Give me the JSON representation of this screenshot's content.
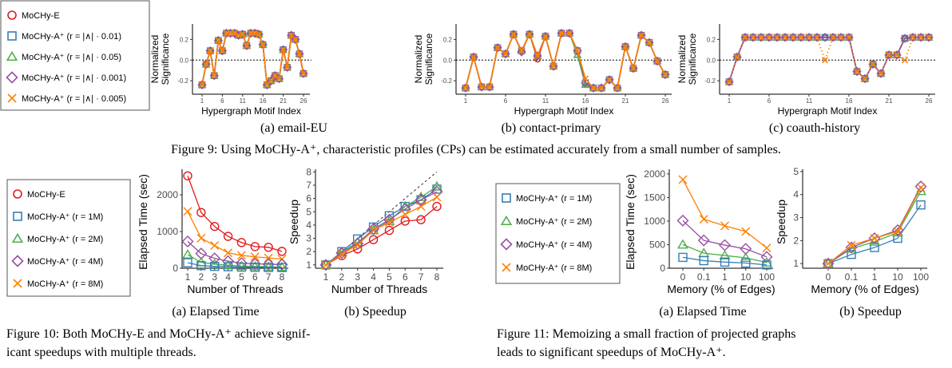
{
  "colors": {
    "E": "#e41a1c",
    "A1": "#377eb8",
    "A2": "#4daf4a",
    "A3": "#984ea3",
    "A4": "#ff7f00"
  },
  "fig9": {
    "legend": [
      "MoCHy-E",
      "MoCHy-A⁺ (r = |∧| · 0.01)",
      "MoCHy-A⁺ (r = |∧| · 0.05)",
      "MoCHy-A⁺ (r = |∧| · 0.001)",
      "MoCHy-A⁺ (r = |∧| · 0.005)"
    ],
    "panel_captions": [
      "(a) email-EU",
      "(b) contact-primary",
      "(c) coauth-history"
    ],
    "caption": "Figure 9: Using MoCHy-A⁺, characteristic profiles (CPs) can be estimated accurately from a small number of samples."
  },
  "fig10": {
    "legend": [
      "MoCHy-E",
      "MoCHy-A⁺ (r = 1M)",
      "MoCHy-A⁺ (r = 2M)",
      "MoCHy-A⁺ (r = 4M)",
      "MoCHy-A⁺ (r = 8M)"
    ],
    "panel_captions": [
      "(a) Elapsed Time",
      "(b) Speedup"
    ],
    "caption_line1": "Figure 10:  Both MoCHy-E and MoCHy-A⁺ achieve signif-",
    "caption_line2": "icant speedups with multiple threads."
  },
  "fig11": {
    "legend": [
      "MoCHy-A⁺ (r = 1M)",
      "MoCHy-A⁺ (r = 2M)",
      "MoCHy-A⁺ (r = 4M)",
      "MoCHy-A⁺ (r = 8M)"
    ],
    "panel_captions": [
      "(a) Elapsed Time",
      "(b) Speedup"
    ],
    "caption_line1": "Figure 11:  Memoizing a small fraction of projected graphs",
    "caption_line2": "leads to significant speedups of MoCHy-A⁺."
  },
  "chart_data": [
    {
      "id": "email-EU",
      "type": "line",
      "xlabel": "Hypergraph Motif Index",
      "ylabel": "Normalized Significance",
      "xticks": [
        1,
        6,
        11,
        16,
        21,
        26
      ],
      "yticks": [
        "-0.2",
        "0.0",
        "0.2"
      ],
      "ylim": [
        -0.33,
        0.35
      ],
      "reference_line": 0,
      "x": [
        1,
        2,
        3,
        4,
        5,
        6,
        7,
        8,
        9,
        10,
        11,
        12,
        13,
        14,
        15,
        16,
        17,
        18,
        19,
        20,
        21,
        22,
        23,
        24,
        25,
        26
      ],
      "series": [
        {
          "key": "E",
          "marker": "circle",
          "values": [
            -0.24,
            -0.04,
            0.09,
            -0.15,
            0.19,
            0.09,
            0.26,
            0.26,
            0.26,
            0.24,
            0.25,
            0.14,
            0.26,
            0.26,
            0.25,
            0.15,
            -0.24,
            -0.2,
            -0.15,
            -0.18,
            0.1,
            -0.07,
            0.24,
            0.2,
            0.06,
            -0.13
          ]
        },
        {
          "key": "A1",
          "marker": "square",
          "values": [
            -0.24,
            -0.04,
            0.09,
            -0.15,
            0.19,
            0.09,
            0.26,
            0.26,
            0.26,
            0.24,
            0.25,
            0.14,
            0.26,
            0.26,
            0.25,
            0.15,
            -0.24,
            -0.2,
            -0.15,
            -0.18,
            0.1,
            -0.07,
            0.24,
            0.2,
            0.06,
            -0.13
          ]
        },
        {
          "key": "A2",
          "marker": "triangle",
          "values": [
            -0.24,
            -0.04,
            0.09,
            -0.15,
            0.19,
            0.09,
            0.26,
            0.26,
            0.26,
            0.24,
            0.25,
            0.14,
            0.26,
            0.26,
            0.25,
            0.15,
            -0.24,
            -0.2,
            -0.15,
            -0.18,
            0.1,
            -0.07,
            0.24,
            0.2,
            0.06,
            -0.13
          ]
        },
        {
          "key": "A3",
          "marker": "diamond",
          "values": [
            -0.24,
            -0.04,
            0.09,
            -0.15,
            0.19,
            0.09,
            0.26,
            0.26,
            0.26,
            0.24,
            0.25,
            0.14,
            0.26,
            0.26,
            0.25,
            0.15,
            -0.24,
            -0.2,
            -0.15,
            -0.18,
            0.1,
            -0.07,
            0.24,
            0.2,
            0.06,
            -0.13
          ]
        },
        {
          "key": "A4",
          "marker": "x",
          "values": [
            -0.24,
            -0.04,
            0.09,
            -0.15,
            0.19,
            0.09,
            0.26,
            0.26,
            0.26,
            0.24,
            0.25,
            0.14,
            0.26,
            0.26,
            0.25,
            0.15,
            -0.24,
            -0.2,
            -0.15,
            -0.18,
            0.1,
            -0.07,
            0.24,
            0.2,
            0.06,
            -0.13
          ]
        }
      ]
    },
    {
      "id": "contact-primary",
      "type": "line",
      "xlabel": "Hypergraph Motif Index",
      "ylabel": "Normalized Significance",
      "xticks": [
        1,
        6,
        11,
        16,
        21,
        26
      ],
      "yticks": [
        "-0.2",
        "0.0",
        "0.2"
      ],
      "ylim": [
        -0.33,
        0.35
      ],
      "reference_line": 0,
      "x": [
        1,
        2,
        3,
        4,
        5,
        6,
        7,
        8,
        9,
        10,
        11,
        12,
        13,
        14,
        15,
        16,
        17,
        18,
        19,
        20,
        21,
        22,
        23,
        24,
        25,
        26
      ],
      "series": [
        {
          "key": "E",
          "marker": "circle",
          "values": [
            -0.27,
            0.03,
            -0.26,
            -0.26,
            0.12,
            0.06,
            0.25,
            0.09,
            0.25,
            0.01,
            0.23,
            -0.06,
            0.26,
            0.26,
            0.09,
            -0.22,
            -0.27,
            -0.27,
            -0.19,
            -0.27,
            0.13,
            -0.08,
            0.24,
            0.17,
            -0.01,
            -0.14
          ]
        },
        {
          "key": "A1",
          "marker": "square",
          "values": [
            -0.27,
            0.03,
            -0.26,
            -0.26,
            0.12,
            0.06,
            0.25,
            0.09,
            0.25,
            0.04,
            0.23,
            -0.06,
            0.26,
            0.26,
            0.09,
            -0.22,
            -0.27,
            -0.27,
            -0.19,
            -0.27,
            0.13,
            -0.08,
            0.24,
            0.17,
            -0.01,
            -0.14
          ]
        },
        {
          "key": "A2",
          "marker": "triangle",
          "values": [
            -0.27,
            0.03,
            -0.26,
            -0.26,
            0.12,
            0.06,
            0.25,
            0.09,
            0.25,
            0.04,
            0.23,
            -0.06,
            0.26,
            0.26,
            0.05,
            -0.24,
            -0.27,
            -0.27,
            -0.19,
            -0.27,
            0.13,
            -0.08,
            0.24,
            0.17,
            -0.01,
            -0.14
          ]
        },
        {
          "key": "A3",
          "marker": "diamond",
          "values": [
            -0.27,
            0.03,
            -0.26,
            -0.26,
            0.12,
            0.06,
            0.25,
            0.08,
            0.25,
            0.04,
            0.23,
            -0.06,
            0.26,
            0.26,
            0.09,
            -0.22,
            -0.27,
            -0.27,
            -0.19,
            -0.27,
            0.13,
            -0.08,
            0.24,
            0.17,
            -0.01,
            -0.14
          ]
        },
        {
          "key": "A4",
          "marker": "x",
          "values": [
            -0.27,
            0.03,
            -0.26,
            -0.26,
            0.12,
            0.06,
            0.25,
            0.09,
            0.25,
            0.04,
            0.23,
            -0.06,
            0.26,
            0.26,
            0.09,
            -0.18,
            -0.27,
            -0.27,
            -0.19,
            -0.27,
            0.13,
            -0.08,
            0.24,
            0.17,
            -0.01,
            -0.14
          ]
        }
      ]
    },
    {
      "id": "coauth-history",
      "type": "line",
      "xlabel": "Hypergraph Motif Index",
      "ylabel": "Normalized Significance",
      "xticks": [
        1,
        6,
        11,
        16,
        21,
        26
      ],
      "yticks": [
        "-0.2",
        "0.0",
        "0.2"
      ],
      "ylim": [
        -0.33,
        0.35
      ],
      "reference_line": 0,
      "x": [
        1,
        2,
        3,
        4,
        5,
        6,
        7,
        8,
        9,
        10,
        11,
        12,
        13,
        14,
        15,
        16,
        17,
        18,
        19,
        20,
        21,
        22,
        23,
        24,
        25,
        26
      ],
      "series": [
        {
          "key": "E",
          "marker": "circle",
          "values": [
            -0.21,
            0.03,
            0.22,
            0.22,
            0.22,
            0.22,
            0.22,
            0.22,
            0.22,
            0.22,
            0.22,
            0.22,
            0.22,
            0.22,
            0.22,
            0.22,
            -0.11,
            -0.18,
            -0.04,
            -0.13,
            0.05,
            0.05,
            0.21,
            0.22,
            0.22,
            0.22
          ]
        },
        {
          "key": "A1",
          "marker": "square",
          "values": [
            -0.21,
            0.03,
            0.22,
            0.22,
            0.22,
            0.22,
            0.22,
            0.22,
            0.22,
            0.22,
            0.22,
            0.22,
            0.22,
            0.22,
            0.22,
            0.22,
            -0.11,
            -0.18,
            -0.04,
            -0.13,
            0.05,
            0.05,
            0.21,
            0.22,
            0.22,
            0.22
          ]
        },
        {
          "key": "A2",
          "marker": "triangle",
          "values": [
            -0.21,
            0.03,
            0.22,
            0.22,
            0.22,
            0.22,
            0.22,
            0.22,
            0.22,
            0.22,
            0.22,
            0.22,
            0.22,
            0.22,
            0.22,
            0.22,
            -0.11,
            -0.18,
            -0.04,
            -0.13,
            0.05,
            0.05,
            0.21,
            0.22,
            0.22,
            0.22
          ]
        },
        {
          "key": "A3",
          "marker": "diamond",
          "values": [
            -0.21,
            0.03,
            0.22,
            0.22,
            0.22,
            0.22,
            0.22,
            0.22,
            0.22,
            0.22,
            0.22,
            0.22,
            0.22,
            0.22,
            0.22,
            0.22,
            -0.11,
            -0.18,
            -0.04,
            -0.13,
            0.05,
            0.05,
            0.21,
            0.22,
            0.22,
            0.22
          ]
        },
        {
          "key": "A4",
          "marker": "x",
          "dotted": true,
          "values": [
            -0.21,
            0.03,
            0.22,
            0.22,
            0.22,
            0.22,
            0.22,
            0.22,
            0.22,
            0.22,
            0.22,
            0.22,
            0.0,
            0.22,
            0.22,
            0.22,
            -0.11,
            -0.18,
            -0.04,
            -0.13,
            0.05,
            0.05,
            0.0,
            0.22,
            0.22,
            0.22
          ]
        }
      ]
    },
    {
      "id": "fig10a",
      "type": "line",
      "xlabel": "Number of Threads",
      "ylabel": "Elapsed Time (sec)",
      "x": [
        1,
        2,
        3,
        4,
        5,
        6,
        7,
        8
      ],
      "xticks": [
        "1",
        "2",
        "3",
        "4",
        "5",
        "6",
        "7",
        "8"
      ],
      "yticks": [
        "0",
        "1000",
        "2000"
      ],
      "ylim": [
        0,
        2700
      ],
      "series": [
        {
          "key": "E",
          "marker": "circle",
          "values": [
            2520,
            1520,
            1140,
            870,
            700,
            590,
            570,
            460
          ]
        },
        {
          "key": "A4",
          "marker": "x",
          "values": [
            1550,
            820,
            620,
            420,
            350,
            310,
            280,
            250
          ]
        },
        {
          "key": "A3",
          "marker": "diamond",
          "values": [
            730,
            400,
            270,
            190,
            140,
            120,
            110,
            100
          ]
        },
        {
          "key": "A2",
          "marker": "triangle",
          "values": [
            370,
            160,
            110,
            80,
            60,
            50,
            40,
            30
          ]
        },
        {
          "key": "A1",
          "marker": "square",
          "values": [
            150,
            70,
            50,
            40,
            30,
            25,
            20,
            18
          ]
        }
      ]
    },
    {
      "id": "fig10b",
      "type": "line",
      "xlabel": "Number of Threads",
      "ylabel": "Speedup",
      "x": [
        1,
        2,
        3,
        4,
        5,
        6,
        7,
        8
      ],
      "xticks": [
        "1",
        "2",
        "3",
        "4",
        "5",
        "6",
        "7",
        "8"
      ],
      "yticks": [
        "1",
        "2",
        "3",
        "4",
        "5",
        "6",
        "7",
        "8"
      ],
      "ylim": [
        0.75,
        8.2
      ],
      "ideal_line": true,
      "series": [
        {
          "key": "E",
          "marker": "circle",
          "values": [
            1,
            1.7,
            2.2,
            2.9,
            3.6,
            4.3,
            4.4,
            5.4
          ]
        },
        {
          "key": "A1",
          "marker": "square",
          "values": [
            1,
            2,
            2.95,
            3.85,
            4.7,
            5.4,
            5.9,
            6.7
          ]
        },
        {
          "key": "A2",
          "marker": "triangle",
          "values": [
            1,
            1.95,
            2.7,
            3.6,
            4.3,
            5.4,
            6.1,
            6.9
          ]
        },
        {
          "key": "A3",
          "marker": "diamond",
          "values": [
            1,
            1.9,
            2.6,
            3.7,
            4.4,
            5.2,
            5.9,
            6.5
          ]
        },
        {
          "key": "A4",
          "marker": "x",
          "values": [
            1,
            1.8,
            2.5,
            3.6,
            4.2,
            4.8,
            5.4,
            6.1
          ]
        }
      ]
    },
    {
      "id": "fig11a",
      "type": "line",
      "xlabel": "Memory (% of Edges)",
      "ylabel": "Elapsed Time (sec)",
      "x": [
        "0",
        "0.1",
        "1",
        "10",
        "100"
      ],
      "xticks": [
        "0",
        "0.1",
        "1",
        "10",
        "100"
      ],
      "yticks": [
        "0",
        "500",
        "1000",
        "1500",
        "2000"
      ],
      "ylim": [
        0,
        2100
      ],
      "series": [
        {
          "key": "A4",
          "marker": "x",
          "values": [
            1880,
            1040,
            900,
            780,
            430
          ]
        },
        {
          "key": "A3",
          "marker": "diamond",
          "values": [
            1010,
            590,
            490,
            410,
            240
          ]
        },
        {
          "key": "A2",
          "marker": "triangle",
          "values": [
            500,
            320,
            270,
            220,
            120
          ]
        },
        {
          "key": "A1",
          "marker": "square",
          "values": [
            230,
            160,
            130,
            110,
            70
          ]
        }
      ]
    },
    {
      "id": "fig11b",
      "type": "line",
      "xlabel": "Memory (% of Edges)",
      "ylabel": "Speedup",
      "x": [
        "0",
        "0.1",
        "1",
        "10",
        "100"
      ],
      "xticks": [
        "0",
        "0.1",
        "1",
        "10",
        "100"
      ],
      "yticks": [
        "1",
        "2",
        "3",
        "4",
        "5"
      ],
      "ylim": [
        0.8,
        5.1
      ],
      "series": [
        {
          "key": "A1",
          "marker": "square",
          "values": [
            1,
            1.4,
            1.7,
            2.1,
            3.55
          ]
        },
        {
          "key": "A2",
          "marker": "triangle",
          "values": [
            1,
            1.65,
            1.95,
            2.35,
            4.15
          ]
        },
        {
          "key": "A3",
          "marker": "diamond",
          "values": [
            1,
            1.7,
            2.1,
            2.45,
            4.35
          ]
        },
        {
          "key": "A4",
          "marker": "x",
          "values": [
            1,
            1.8,
            2.1,
            2.4,
            4.3
          ]
        }
      ]
    }
  ]
}
